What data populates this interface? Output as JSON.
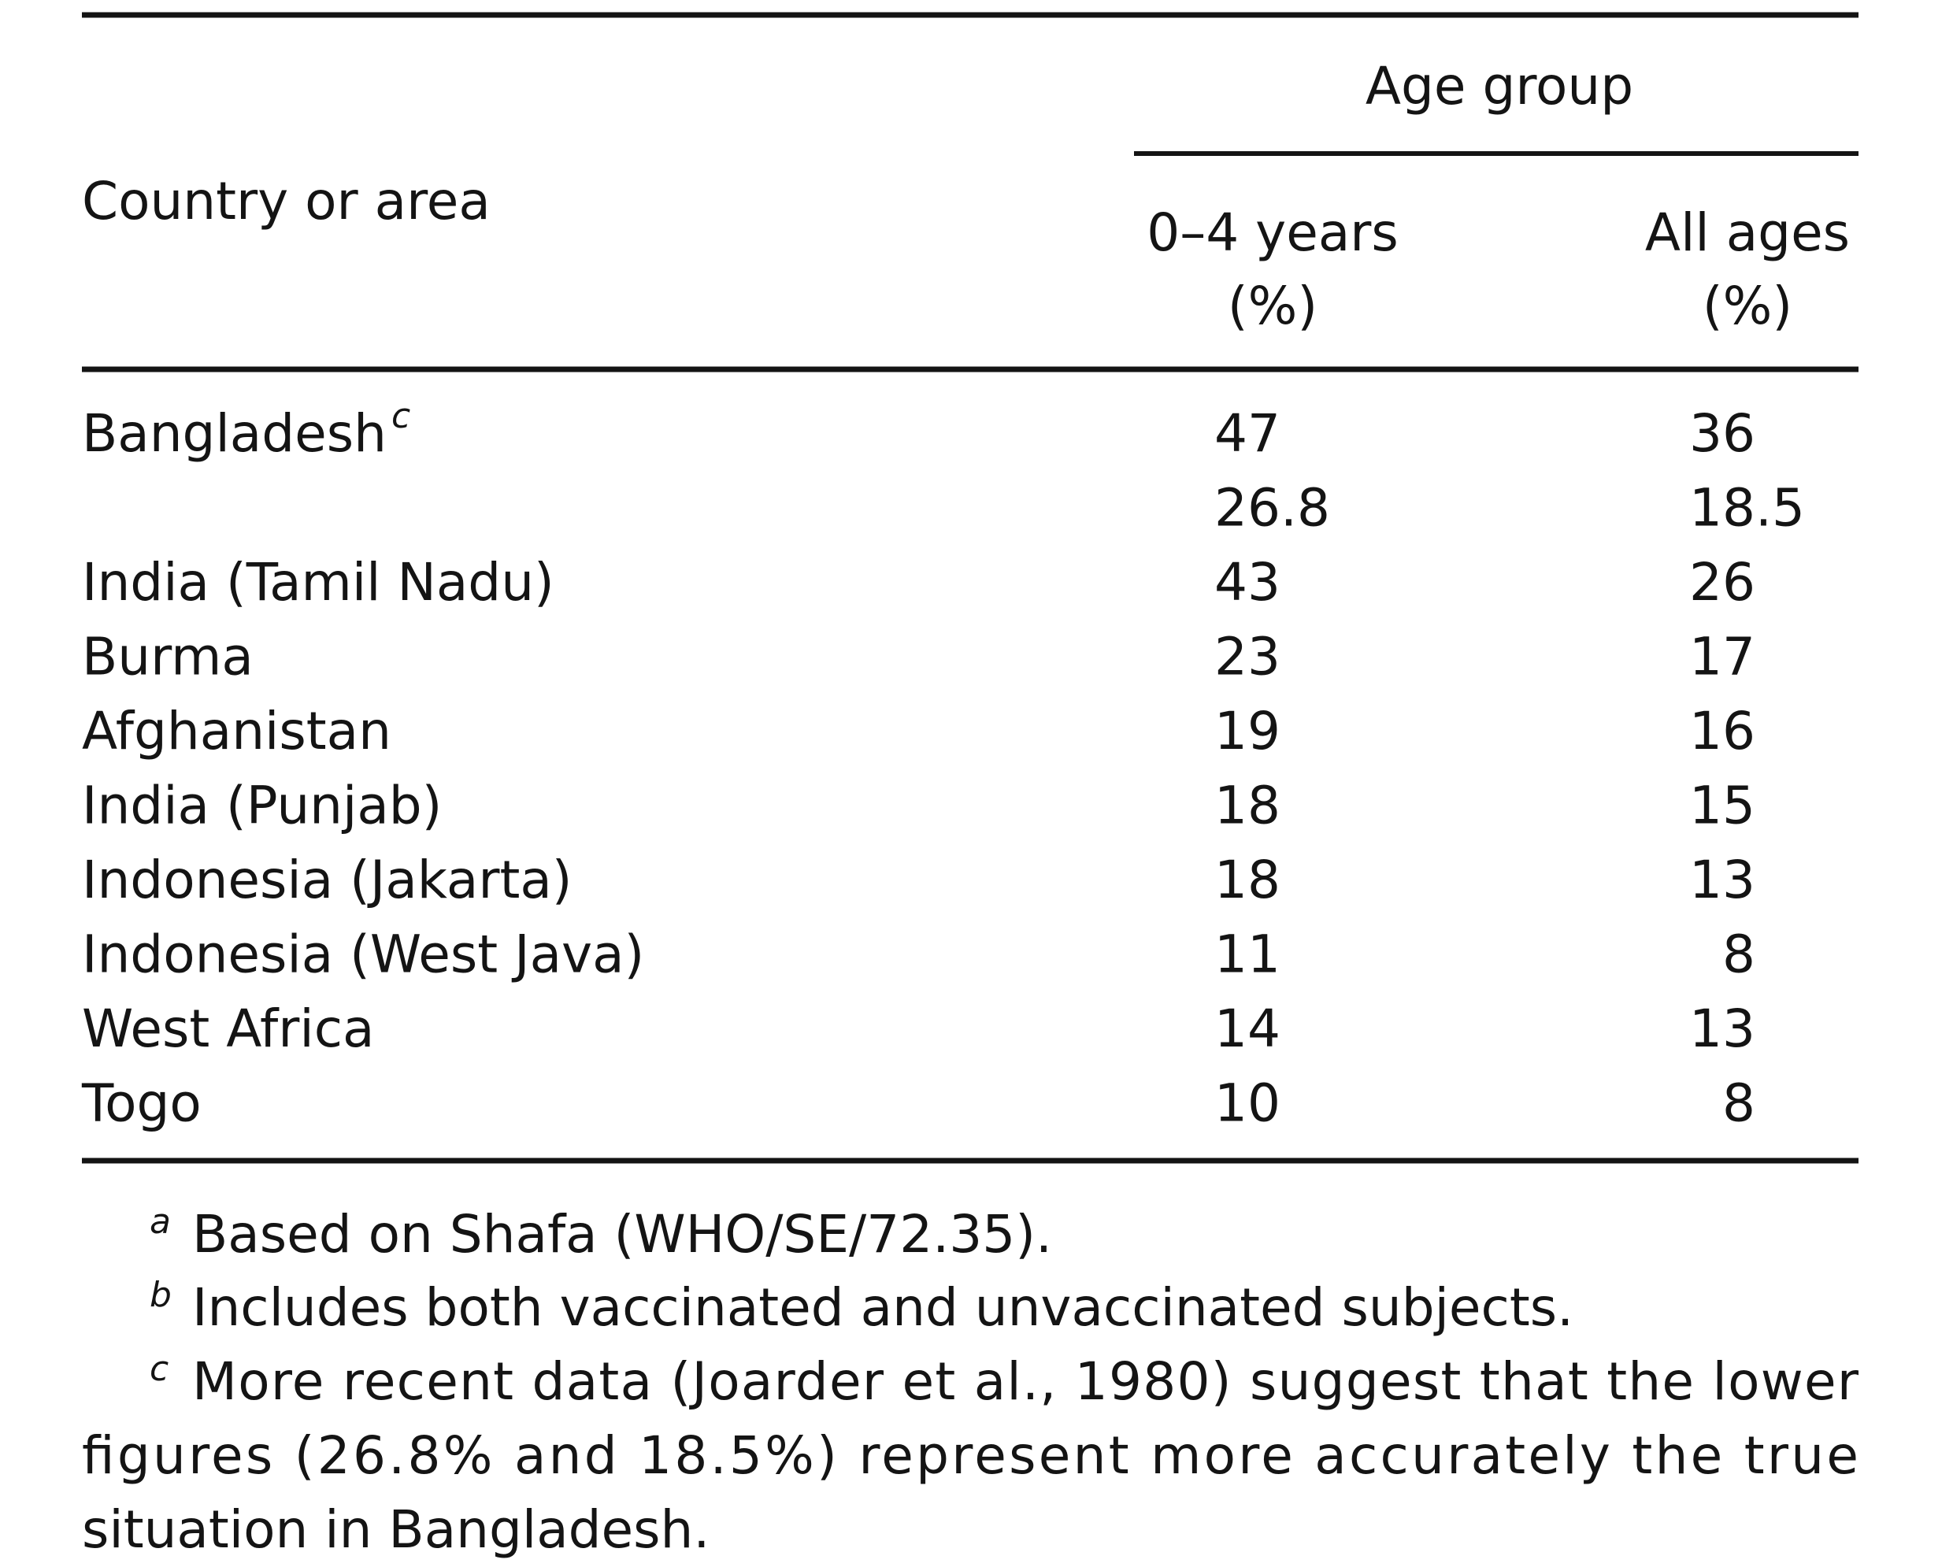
{
  "table": {
    "header": {
      "country": "Country or area",
      "group": "Age group",
      "columns": [
        [
          "0–4 years",
          "(%)"
        ],
        [
          "All ages",
          "(%)"
        ]
      ]
    },
    "rows": [
      {
        "country": "Bangladesh",
        "note": "c",
        "values": [
          47,
          36
        ]
      },
      {
        "country": null,
        "values": [
          26.8,
          18.5
        ]
      },
      {
        "country": "India (Tamil Nadu)",
        "values": [
          43,
          26
        ]
      },
      {
        "country": "Burma",
        "values": [
          23,
          17
        ]
      },
      {
        "country": "Afghanistan",
        "values": [
          19,
          16
        ]
      },
      {
        "country": "India (Punjab)",
        "values": [
          18,
          15
        ]
      },
      {
        "country": "Indonesia (Jakarta)",
        "values": [
          18,
          13
        ]
      },
      {
        "country": "Indonesia (West Java)",
        "values": [
          11,
          8
        ]
      },
      {
        "country": "West Africa",
        "values": [
          14,
          13
        ]
      },
      {
        "country": "Togo",
        "values": [
          10,
          8
        ]
      }
    ],
    "footnotes": [
      {
        "mark": "a",
        "lines": [
          "Based on Shafa (WHO/SE/72.35)."
        ]
      },
      {
        "mark": "b",
        "lines": [
          "Includes both vaccinated and unvaccinated subjects."
        ]
      },
      {
        "mark": "c",
        "lines": [
          "More recent data (Joarder et al., 1980) suggest that the lower",
          "figures (26.8% and 18.5%) represent more accurately the true",
          "situation in Bangladesh."
        ]
      }
    ]
  }
}
